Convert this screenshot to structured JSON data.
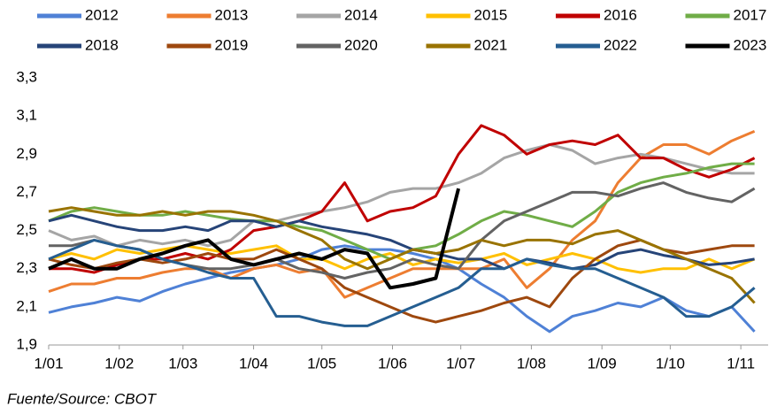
{
  "chart_data": {
    "type": "line",
    "source": "Fuente/Source: CBOT",
    "x": [
      0,
      10,
      20,
      30,
      40,
      50,
      60,
      70,
      80,
      90,
      100,
      110,
      120,
      130,
      140,
      150,
      160,
      170,
      180,
      190,
      200,
      210,
      220,
      230,
      240,
      250,
      260,
      270,
      280,
      290,
      300,
      310
    ],
    "xlim": [
      0,
      316
    ],
    "xticks": [
      {
        "value": 0,
        "label": "1/01"
      },
      {
        "value": 31,
        "label": "1/02"
      },
      {
        "value": 59,
        "label": "1/03"
      },
      {
        "value": 90,
        "label": "1/04"
      },
      {
        "value": 120,
        "label": "1/05"
      },
      {
        "value": 151,
        "label": "1/06"
      },
      {
        "value": 181,
        "label": "1/07"
      },
      {
        "value": 212,
        "label": "1/08"
      },
      {
        "value": 243,
        "label": "1/09"
      },
      {
        "value": 273,
        "label": "1/10"
      },
      {
        "value": 304,
        "label": "1/11"
      }
    ],
    "ylim": [
      1.9,
      3.3
    ],
    "yticks": [
      {
        "value": 1.9,
        "label": "1,9"
      },
      {
        "value": 2.1,
        "label": "2,1"
      },
      {
        "value": 2.3,
        "label": "2,3"
      },
      {
        "value": 2.5,
        "label": "2,5"
      },
      {
        "value": 2.7,
        "label": "2,7"
      },
      {
        "value": 2.9,
        "label": "2,9"
      },
      {
        "value": 3.1,
        "label": "3,1"
      },
      {
        "value": 3.3,
        "label": "3,3"
      }
    ],
    "grid": false,
    "series": [
      {
        "name": "2012",
        "color": "#4f81d6",
        "values": [
          2.07,
          2.1,
          2.12,
          2.15,
          2.13,
          2.18,
          2.22,
          2.25,
          2.28,
          2.3,
          2.32,
          2.35,
          2.4,
          2.42,
          2.4,
          2.4,
          2.38,
          2.35,
          2.3,
          2.22,
          2.15,
          2.05,
          1.97,
          2.05,
          2.08,
          2.12,
          2.1,
          2.15,
          2.08,
          2.05,
          2.1,
          1.97
        ]
      },
      {
        "name": "2013",
        "color": "#ed7d31",
        "values": [
          2.18,
          2.22,
          2.22,
          2.25,
          2.25,
          2.28,
          2.3,
          2.3,
          2.25,
          2.3,
          2.32,
          2.28,
          2.3,
          2.15,
          2.2,
          2.25,
          2.3,
          2.3,
          2.3,
          2.3,
          2.35,
          2.2,
          2.3,
          2.45,
          2.55,
          2.75,
          2.88,
          2.95,
          2.95,
          2.9,
          2.97,
          3.02
        ]
      },
      {
        "name": "2014",
        "color": "#a5a5a5",
        "values": [
          2.5,
          2.45,
          2.47,
          2.42,
          2.45,
          2.43,
          2.45,
          2.42,
          2.45,
          2.55,
          2.55,
          2.58,
          2.6,
          2.62,
          2.65,
          2.7,
          2.72,
          2.72,
          2.75,
          2.8,
          2.88,
          2.92,
          2.95,
          2.92,
          2.85,
          2.88,
          2.9,
          2.88,
          2.85,
          2.82,
          2.8,
          2.8
        ]
      },
      {
        "name": "2015",
        "color": "#ffc000",
        "values": [
          2.35,
          2.38,
          2.35,
          2.4,
          2.38,
          2.4,
          2.42,
          2.4,
          2.38,
          2.4,
          2.42,
          2.35,
          2.35,
          2.3,
          2.35,
          2.38,
          2.32,
          2.35,
          2.33,
          2.35,
          2.38,
          2.32,
          2.35,
          2.38,
          2.35,
          2.3,
          2.28,
          2.3,
          2.3,
          2.35,
          2.3,
          2.35
        ]
      },
      {
        "name": "2016",
        "color": "#c00000",
        "values": [
          2.3,
          2.3,
          2.28,
          2.32,
          2.35,
          2.35,
          2.38,
          2.35,
          2.4,
          2.5,
          2.52,
          2.55,
          2.6,
          2.75,
          2.55,
          2.6,
          2.62,
          2.68,
          2.9,
          3.05,
          3.0,
          2.9,
          2.95,
          2.97,
          2.95,
          3.0,
          2.88,
          2.88,
          2.82,
          2.78,
          2.82,
          2.88
        ]
      },
      {
        "name": "2017",
        "color": "#70ad47",
        "values": [
          2.55,
          2.6,
          2.62,
          2.6,
          2.58,
          2.58,
          2.6,
          2.58,
          2.56,
          2.55,
          2.55,
          2.52,
          2.5,
          2.45,
          2.4,
          2.35,
          2.4,
          2.42,
          2.48,
          2.55,
          2.6,
          2.58,
          2.55,
          2.52,
          2.6,
          2.7,
          2.75,
          2.78,
          2.8,
          2.83,
          2.85,
          2.85
        ]
      },
      {
        "name": "2018",
        "color": "#264478",
        "values": [
          2.55,
          2.58,
          2.55,
          2.52,
          2.5,
          2.5,
          2.52,
          2.5,
          2.55,
          2.55,
          2.52,
          2.55,
          2.52,
          2.5,
          2.48,
          2.45,
          2.4,
          2.38,
          2.35,
          2.35,
          2.3,
          2.35,
          2.33,
          2.3,
          2.32,
          2.38,
          2.4,
          2.37,
          2.35,
          2.32,
          2.33,
          2.35
        ]
      },
      {
        "name": "2019",
        "color": "#9e480e",
        "values": [
          2.35,
          2.32,
          2.3,
          2.33,
          2.35,
          2.33,
          2.35,
          2.38,
          2.35,
          2.35,
          2.4,
          2.35,
          2.3,
          2.2,
          2.15,
          2.1,
          2.05,
          2.02,
          2.05,
          2.08,
          2.12,
          2.15,
          2.1,
          2.25,
          2.35,
          2.42,
          2.45,
          2.4,
          2.38,
          2.4,
          2.42,
          2.42
        ]
      },
      {
        "name": "2020",
        "color": "#636363",
        "values": [
          2.42,
          2.42,
          2.45,
          2.42,
          2.4,
          2.35,
          2.32,
          2.3,
          2.3,
          2.32,
          2.35,
          2.3,
          2.28,
          2.25,
          2.28,
          2.3,
          2.35,
          2.32,
          2.3,
          2.45,
          2.55,
          2.6,
          2.65,
          2.7,
          2.7,
          2.68,
          2.72,
          2.75,
          2.7,
          2.67,
          2.65,
          2.72
        ]
      },
      {
        "name": "2021",
        "color": "#997300",
        "values": [
          2.6,
          2.62,
          2.6,
          2.58,
          2.58,
          2.6,
          2.58,
          2.6,
          2.6,
          2.58,
          2.55,
          2.5,
          2.45,
          2.35,
          2.3,
          2.35,
          2.4,
          2.38,
          2.4,
          2.45,
          2.42,
          2.45,
          2.45,
          2.43,
          2.48,
          2.5,
          2.45,
          2.4,
          2.35,
          2.3,
          2.25,
          2.12
        ]
      },
      {
        "name": "2022",
        "color": "#255e91",
        "values": [
          2.35,
          2.4,
          2.45,
          2.42,
          2.4,
          2.35,
          2.32,
          2.28,
          2.25,
          2.25,
          2.05,
          2.05,
          2.02,
          2.0,
          2.0,
          2.05,
          2.1,
          2.15,
          2.2,
          2.3,
          2.3,
          2.35,
          2.32,
          2.3,
          2.3,
          2.25,
          2.2,
          2.15,
          2.05,
          2.05,
          2.1,
          2.2
        ]
      },
      {
        "name": "2023",
        "color": "#000000",
        "width": 4,
        "values": [
          2.3,
          2.35,
          2.3,
          2.3,
          2.35,
          2.38,
          2.42,
          2.45,
          2.35,
          2.32,
          2.35,
          2.38,
          2.35,
          2.4,
          2.38,
          2.2,
          2.22,
          2.25,
          2.72,
          null,
          null,
          null,
          null,
          null,
          null,
          null,
          null,
          null,
          null,
          null,
          null,
          null
        ]
      }
    ]
  }
}
